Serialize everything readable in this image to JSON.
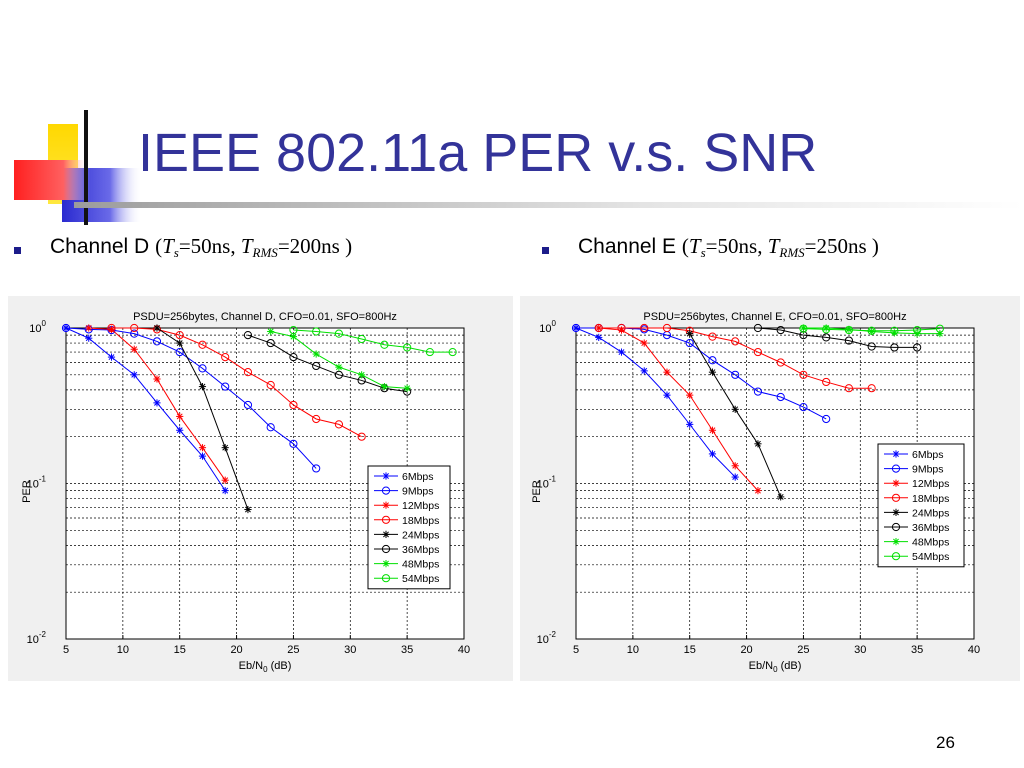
{
  "slide": {
    "title": "IEEE 802.11a PER v.s. SNR",
    "page_number": "26",
    "bullets": [
      {
        "label": "Channel D",
        "open": "(",
        "ts_sym": "T",
        "ts_sub": "s",
        "ts_val": "=50ns, ",
        "trms_sym": "T",
        "trms_sub": "RMS",
        "trms_val": "=200ns )"
      },
      {
        "label": "Channel E",
        "open": "(",
        "ts_sym": "T",
        "ts_sub": "s",
        "ts_val": "=50ns, ",
        "trms_sym": "T",
        "trms_sub": "RMS",
        "trms_val": "=250ns )"
      }
    ],
    "colors": {
      "title": "#333399",
      "bullet": "#1c1c8a"
    }
  },
  "chart_data": [
    {
      "type": "line",
      "title": "PSDU=256bytes, Channel D, CFO=0.01, SFO=800Hz",
      "xlabel": "Eb/N0 (dB)",
      "ylabel": "PER",
      "y_scale": "log",
      "xlim": [
        5,
        40
      ],
      "ylim": [
        0.01,
        1
      ],
      "x_ticks": [
        "5",
        "10",
        "15",
        "20",
        "25",
        "30",
        "35",
        "40"
      ],
      "y_ticks": [
        {
          "base": "10",
          "exp": "0",
          "value": 1
        },
        {
          "base": "10",
          "exp": "-1",
          "value": 0.1
        },
        {
          "base": "10",
          "exp": "-2",
          "value": 0.01
        }
      ],
      "grid": true,
      "legend_position": "bottom-right",
      "series": [
        {
          "name": "6Mbps",
          "color": "#0000ff",
          "marker": "star",
          "x": [
            5,
            7,
            9,
            11,
            13,
            15,
            17,
            19
          ],
          "y": [
            1.0,
            0.86,
            0.65,
            0.5,
            0.33,
            0.22,
            0.15,
            0.09
          ]
        },
        {
          "name": "9Mbps",
          "color": "#0000ff",
          "marker": "circle",
          "x": [
            5,
            7,
            9,
            11,
            13,
            15,
            17,
            19,
            21,
            23,
            25,
            27
          ],
          "y": [
            1.0,
            0.98,
            0.97,
            0.92,
            0.82,
            0.7,
            0.55,
            0.42,
            0.32,
            0.23,
            0.18,
            0.125
          ]
        },
        {
          "name": "12Mbps",
          "color": "#ff0000",
          "marker": "star",
          "x": [
            7,
            9,
            11,
            13,
            15,
            17,
            19
          ],
          "y": [
            1.0,
            0.98,
            0.73,
            0.47,
            0.27,
            0.17,
            0.105
          ]
        },
        {
          "name": "18Mbps",
          "color": "#ff0000",
          "marker": "circle",
          "x": [
            9,
            11,
            13,
            15,
            17,
            19,
            21,
            23,
            25,
            27,
            29,
            31
          ],
          "y": [
            1.0,
            1.0,
            0.98,
            0.9,
            0.78,
            0.65,
            0.52,
            0.43,
            0.32,
            0.26,
            0.24,
            0.2
          ]
        },
        {
          "name": "24Mbps",
          "color": "#000000",
          "marker": "star",
          "x": [
            13,
            15,
            17,
            19,
            21
          ],
          "y": [
            1.0,
            0.8,
            0.42,
            0.17,
            0.068
          ]
        },
        {
          "name": "36Mbps",
          "color": "#000000",
          "marker": "circle",
          "x": [
            21,
            23,
            25,
            27,
            29,
            31,
            33,
            35
          ],
          "y": [
            0.9,
            0.8,
            0.65,
            0.57,
            0.5,
            0.46,
            0.41,
            0.39
          ]
        },
        {
          "name": "48Mbps",
          "color": "#00e000",
          "marker": "star",
          "x": [
            23,
            25,
            27,
            29,
            31,
            33,
            35
          ],
          "y": [
            0.95,
            0.88,
            0.68,
            0.56,
            0.5,
            0.42,
            0.41
          ]
        },
        {
          "name": "54Mbps",
          "color": "#00e000",
          "marker": "circle",
          "x": [
            25,
            27,
            29,
            31,
            33,
            35,
            37,
            39
          ],
          "y": [
            0.97,
            0.95,
            0.92,
            0.85,
            0.78,
            0.75,
            0.7,
            0.7
          ]
        }
      ]
    },
    {
      "type": "line",
      "title": "PSDU=256bytes, Channel E, CFO=0.01, SFO=800Hz",
      "xlabel": "Eb/N0 (dB)",
      "ylabel": "PER",
      "y_scale": "log",
      "xlim": [
        5,
        40
      ],
      "ylim": [
        0.01,
        1
      ],
      "x_ticks": [
        "5",
        "10",
        "15",
        "20",
        "25",
        "30",
        "35",
        "40"
      ],
      "y_ticks": [
        {
          "base": "10",
          "exp": "0",
          "value": 1
        },
        {
          "base": "10",
          "exp": "-1",
          "value": 0.1
        },
        {
          "base": "10",
          "exp": "-2",
          "value": 0.01
        }
      ],
      "grid": true,
      "legend_position": "right",
      "series": [
        {
          "name": "6Mbps",
          "color": "#0000ff",
          "marker": "star",
          "x": [
            5,
            7,
            9,
            11,
            13,
            15,
            17,
            19
          ],
          "y": [
            1.0,
            0.87,
            0.7,
            0.53,
            0.37,
            0.24,
            0.155,
            0.11
          ]
        },
        {
          "name": "9Mbps",
          "color": "#0000ff",
          "marker": "circle",
          "x": [
            5,
            7,
            9,
            11,
            13,
            15,
            17,
            19,
            21,
            23,
            25,
            27
          ],
          "y": [
            1.0,
            1.0,
            1.0,
            0.98,
            0.9,
            0.8,
            0.62,
            0.5,
            0.39,
            0.36,
            0.31,
            0.26
          ]
        },
        {
          "name": "12Mbps",
          "color": "#ff0000",
          "marker": "star",
          "x": [
            7,
            9,
            11,
            13,
            15,
            17,
            19,
            21
          ],
          "y": [
            1.0,
            0.97,
            0.8,
            0.52,
            0.37,
            0.22,
            0.13,
            0.09
          ]
        },
        {
          "name": "18Mbps",
          "color": "#ff0000",
          "marker": "circle",
          "x": [
            7,
            9,
            11,
            13,
            15,
            17,
            19,
            21,
            23,
            25,
            27,
            29,
            31
          ],
          "y": [
            1.0,
            1.0,
            1.0,
            1.0,
            0.96,
            0.88,
            0.82,
            0.7,
            0.6,
            0.5,
            0.45,
            0.41,
            0.41
          ]
        },
        {
          "name": "24Mbps",
          "color": "#000000",
          "marker": "star",
          "x": [
            15,
            17,
            19,
            21,
            23
          ],
          "y": [
            0.92,
            0.52,
            0.3,
            0.18,
            0.082
          ]
        },
        {
          "name": "36Mbps",
          "color": "#000000",
          "marker": "circle",
          "x": [
            21,
            23,
            25,
            27,
            29,
            31,
            33,
            35
          ],
          "y": [
            1.0,
            0.97,
            0.9,
            0.87,
            0.83,
            0.76,
            0.75,
            0.75
          ]
        },
        {
          "name": "48Mbps",
          "color": "#00e000",
          "marker": "star",
          "x": [
            25,
            27,
            29,
            31,
            33,
            35,
            37
          ],
          "y": [
            1.0,
            1.0,
            0.98,
            0.95,
            0.93,
            0.92,
            0.92
          ]
        },
        {
          "name": "54Mbps",
          "color": "#00e000",
          "marker": "circle",
          "x": [
            25,
            27,
            29,
            31,
            33,
            35,
            37
          ],
          "y": [
            0.99,
            0.98,
            0.97,
            0.96,
            0.96,
            0.97,
            0.99
          ]
        }
      ]
    }
  ]
}
